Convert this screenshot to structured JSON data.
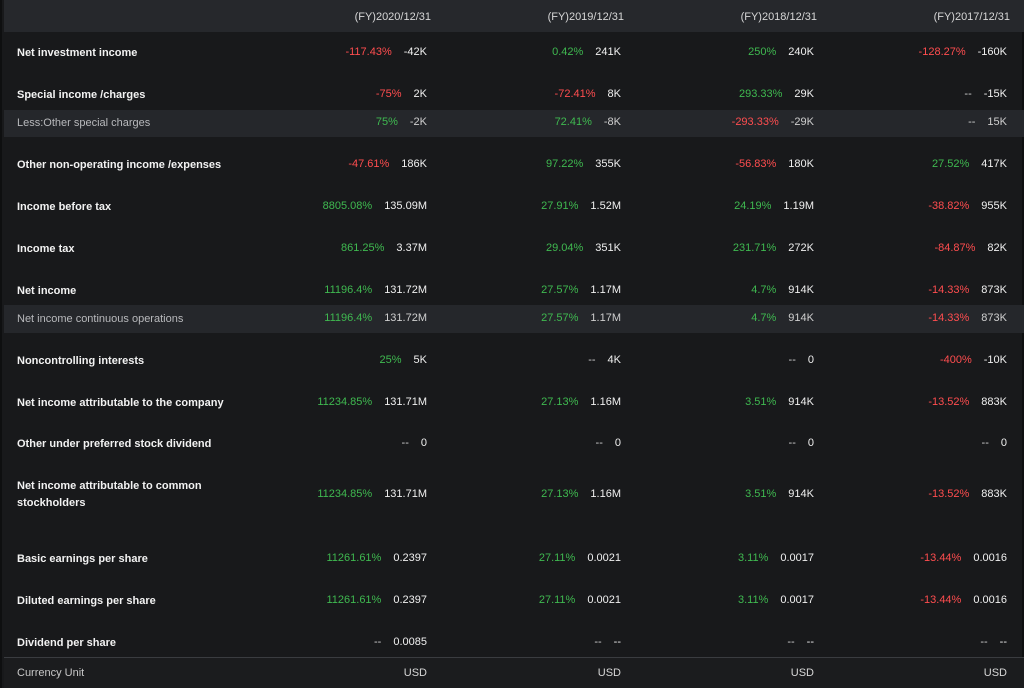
{
  "columns": [
    "(FY)2020/12/31",
    "(FY)2019/12/31",
    "(FY)2018/12/31",
    "(FY)2017/12/31"
  ],
  "rows": [
    {
      "label": "Net investment income",
      "type": "main",
      "cells": [
        {
          "pct": "-117.43%",
          "dir": "down",
          "val": "-42K"
        },
        {
          "pct": "0.42%",
          "dir": "up",
          "val": "241K"
        },
        {
          "pct": "250%",
          "dir": "up",
          "val": "240K"
        },
        {
          "pct": "-128.27%",
          "dir": "down",
          "val": "-160K"
        }
      ]
    },
    {
      "label": "Special income /charges",
      "type": "main",
      "cells": [
        {
          "pct": "-75%",
          "dir": "down",
          "val": "2K"
        },
        {
          "pct": "-72.41%",
          "dir": "down",
          "val": "8K"
        },
        {
          "pct": "293.33%",
          "dir": "up",
          "val": "29K"
        },
        {
          "pct": "--",
          "dir": "flat",
          "val": "-15K"
        }
      ]
    },
    {
      "label": "Less:Other special charges",
      "type": "sub",
      "cells": [
        {
          "pct": "75%",
          "dir": "up",
          "val": "-2K"
        },
        {
          "pct": "72.41%",
          "dir": "up",
          "val": "-8K"
        },
        {
          "pct": "-293.33%",
          "dir": "down",
          "val": "-29K"
        },
        {
          "pct": "--",
          "dir": "flat",
          "val": "15K"
        }
      ]
    },
    {
      "label": "Other non-operating income /expenses",
      "type": "main",
      "cells": [
        {
          "pct": "-47.61%",
          "dir": "down",
          "val": "186K"
        },
        {
          "pct": "97.22%",
          "dir": "up",
          "val": "355K"
        },
        {
          "pct": "-56.83%",
          "dir": "down",
          "val": "180K"
        },
        {
          "pct": "27.52%",
          "dir": "up",
          "val": "417K"
        }
      ]
    },
    {
      "label": "Income before tax",
      "type": "main",
      "cells": [
        {
          "pct": "8805.08%",
          "dir": "up",
          "val": "135.09M"
        },
        {
          "pct": "27.91%",
          "dir": "up",
          "val": "1.52M"
        },
        {
          "pct": "24.19%",
          "dir": "up",
          "val": "1.19M"
        },
        {
          "pct": "-38.82%",
          "dir": "down",
          "val": "955K"
        }
      ]
    },
    {
      "label": "Income tax",
      "type": "main",
      "cells": [
        {
          "pct": "861.25%",
          "dir": "up",
          "val": "3.37M"
        },
        {
          "pct": "29.04%",
          "dir": "up",
          "val": "351K"
        },
        {
          "pct": "231.71%",
          "dir": "up",
          "val": "272K"
        },
        {
          "pct": "-84.87%",
          "dir": "down",
          "val": "82K"
        }
      ]
    },
    {
      "label": "Net income",
      "type": "main",
      "cells": [
        {
          "pct": "11196.4%",
          "dir": "up",
          "val": "131.72M"
        },
        {
          "pct": "27.57%",
          "dir": "up",
          "val": "1.17M"
        },
        {
          "pct": "4.7%",
          "dir": "up",
          "val": "914K"
        },
        {
          "pct": "-14.33%",
          "dir": "down",
          "val": "873K"
        }
      ]
    },
    {
      "label": "Net income continuous operations",
      "type": "sub",
      "cells": [
        {
          "pct": "11196.4%",
          "dir": "up",
          "val": "131.72M"
        },
        {
          "pct": "27.57%",
          "dir": "up",
          "val": "1.17M"
        },
        {
          "pct": "4.7%",
          "dir": "up",
          "val": "914K"
        },
        {
          "pct": "-14.33%",
          "dir": "down",
          "val": "873K"
        }
      ]
    },
    {
      "label": "Noncontrolling interests",
      "type": "main",
      "cells": [
        {
          "pct": "25%",
          "dir": "up",
          "val": "5K"
        },
        {
          "pct": "--",
          "dir": "flat",
          "val": "4K"
        },
        {
          "pct": "--",
          "dir": "flat",
          "val": "0"
        },
        {
          "pct": "-400%",
          "dir": "down",
          "val": "-10K"
        }
      ]
    },
    {
      "label": "Net income attributable to the company",
      "type": "main",
      "cells": [
        {
          "pct": "11234.85%",
          "dir": "up",
          "val": "131.71M"
        },
        {
          "pct": "27.13%",
          "dir": "up",
          "val": "1.16M"
        },
        {
          "pct": "3.51%",
          "dir": "up",
          "val": "914K"
        },
        {
          "pct": "-13.52%",
          "dir": "down",
          "val": "883K"
        }
      ]
    },
    {
      "label": "Other under preferred stock dividend",
      "type": "main",
      "cells": [
        {
          "pct": "--",
          "dir": "flat",
          "val": "0"
        },
        {
          "pct": "--",
          "dir": "flat",
          "val": "0"
        },
        {
          "pct": "--",
          "dir": "flat",
          "val": "0"
        },
        {
          "pct": "--",
          "dir": "flat",
          "val": "0"
        }
      ]
    },
    {
      "label": "Net income attributable to common stockholders",
      "type": "main",
      "cells": [
        {
          "pct": "11234.85%",
          "dir": "up",
          "val": "131.71M"
        },
        {
          "pct": "27.13%",
          "dir": "up",
          "val": "1.16M"
        },
        {
          "pct": "3.51%",
          "dir": "up",
          "val": "914K"
        },
        {
          "pct": "-13.52%",
          "dir": "down",
          "val": "883K"
        }
      ]
    },
    {
      "label": "Basic earnings per share",
      "type": "main",
      "cells": [
        {
          "pct": "11261.61%",
          "dir": "up",
          "val": "0.2397"
        },
        {
          "pct": "27.11%",
          "dir": "up",
          "val": "0.0021"
        },
        {
          "pct": "3.11%",
          "dir": "up",
          "val": "0.0017"
        },
        {
          "pct": "-13.44%",
          "dir": "down",
          "val": "0.0016"
        }
      ]
    },
    {
      "label": "Diluted earnings per share",
      "type": "main",
      "cells": [
        {
          "pct": "11261.61%",
          "dir": "up",
          "val": "0.2397"
        },
        {
          "pct": "27.11%",
          "dir": "up",
          "val": "0.0021"
        },
        {
          "pct": "3.11%",
          "dir": "up",
          "val": "0.0017"
        },
        {
          "pct": "-13.44%",
          "dir": "down",
          "val": "0.0016"
        }
      ]
    },
    {
      "label": "Dividend per share",
      "type": "main",
      "cells": [
        {
          "pct": "--",
          "dir": "flat",
          "val": "0.0085"
        },
        {
          "pct": "--",
          "dir": "flat",
          "val": "--"
        },
        {
          "pct": "--",
          "dir": "flat",
          "val": "--"
        },
        {
          "pct": "--",
          "dir": "flat",
          "val": "--"
        }
      ]
    }
  ],
  "footer": {
    "label": "Currency Unit",
    "values": [
      "USD",
      "USD",
      "USD",
      "USD"
    ]
  },
  "colors": {
    "up": "#3fb950",
    "down": "#ff4d4f",
    "background": "#18191b",
    "header": "#26282c"
  }
}
